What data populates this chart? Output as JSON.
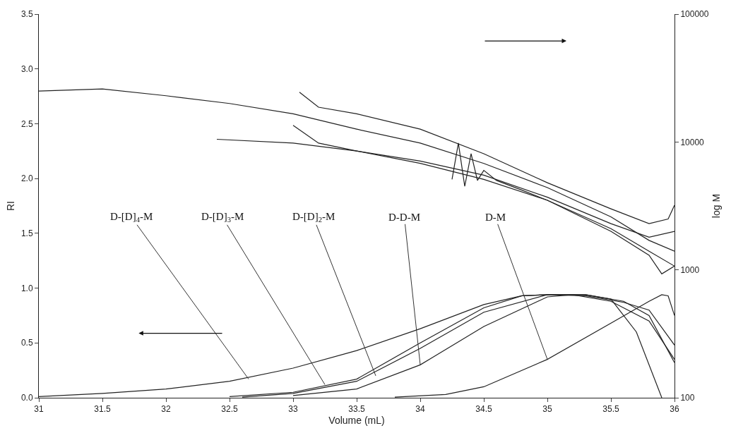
{
  "chart_data": {
    "type": "line",
    "xlabel": "Volume (mL)",
    "ylabel": "RI",
    "y2label": "log M",
    "xlim": [
      31,
      36
    ],
    "xticks": [
      31,
      31.5,
      32,
      32.5,
      33,
      33.5,
      34,
      34.5,
      35,
      35.5,
      36
    ],
    "ylim": [
      0,
      3.5
    ],
    "yticks": [
      {
        "value": 0,
        "label": "0.0"
      },
      {
        "value": 0.5,
        "label": "0.5"
      },
      {
        "value": 1,
        "label": "1.0"
      },
      {
        "value": 1.5,
        "label": "1.5"
      },
      {
        "value": 2,
        "label": "2.0"
      },
      {
        "value": 2.5,
        "label": "2.5"
      },
      {
        "value": 3,
        "label": "3.0"
      },
      {
        "value": 3.5,
        "label": "3.5"
      }
    ],
    "y2lim": [
      100,
      100000
    ],
    "y2ticks": [
      100,
      1000,
      10000,
      100000
    ],
    "log": "y2",
    "marker": "none",
    "line_style": "solid",
    "series": [
      {
        "color": "#222222",
        "x": [
          31,
          31.5,
          32,
          32.5,
          33,
          33.5,
          34,
          34.5,
          34.8,
          35,
          35.3,
          35.5,
          35.7,
          35.9
        ],
        "values": [
          0.01,
          0.04,
          0.08,
          0.15,
          0.27,
          0.43,
          0.63,
          0.85,
          0.93,
          0.94,
          0.94,
          0.9,
          0.6,
          0.0
        ]
      },
      {
        "color": "#222222",
        "x": [
          32.5,
          33,
          33.5,
          34,
          34.5,
          34.8,
          35,
          35.3,
          35.6,
          35.8,
          36
        ],
        "values": [
          0.01,
          0.05,
          0.17,
          0.5,
          0.82,
          0.93,
          0.94,
          0.93,
          0.87,
          0.8,
          0.48
        ]
      },
      {
        "color": "#222222",
        "x": [
          32.6,
          33,
          33.5,
          34,
          34.5,
          35,
          35.3,
          35.6,
          35.8,
          36
        ],
        "values": [
          0.005,
          0.04,
          0.15,
          0.45,
          0.78,
          0.94,
          0.94,
          0.88,
          0.75,
          0.32
        ]
      },
      {
        "color": "#222222",
        "x": [
          33,
          33.5,
          34,
          34.5,
          35,
          35.2,
          35.5,
          35.8,
          36
        ],
        "values": [
          0.02,
          0.08,
          0.3,
          0.65,
          0.92,
          0.94,
          0.88,
          0.7,
          0.35
        ]
      },
      {
        "color": "#222222",
        "x": [
          33.8,
          34.2,
          34.5,
          35,
          35.5,
          35.8,
          35.9,
          35.95,
          36
        ],
        "values": [
          0.005,
          0.03,
          0.1,
          0.35,
          0.68,
          0.88,
          0.94,
          0.93,
          0.75
        ]
      },
      {
        "color": "#222222",
        "axis": "y2",
        "x": [
          31,
          31.5,
          32,
          32.5,
          33,
          33.5,
          34,
          34.5,
          35,
          35.5,
          35.8,
          36
        ],
        "values": [
          25000,
          26000,
          23000,
          20000,
          16600,
          12600,
          9800,
          6800,
          4400,
          2600,
          1700,
          1400
        ]
      },
      {
        "color": "#222222",
        "axis": "y2",
        "x": [
          32.4,
          33,
          33.5,
          34,
          34.5,
          35,
          35.5,
          35.8,
          36
        ],
        "values": [
          10500,
          9800,
          8500,
          7100,
          5500,
          3700,
          2300,
          1800,
          2000
        ]
      },
      {
        "color": "#222222",
        "axis": "y2",
        "x": [
          33,
          33.2,
          33.5,
          34,
          34.5,
          35,
          35.5,
          35.8,
          36
        ],
        "values": [
          13500,
          9800,
          8500,
          6800,
          5100,
          3500,
          2100,
          1400,
          1070
        ]
      },
      {
        "color": "#222222",
        "axis": "y2",
        "x": [
          33.05,
          33.2,
          33.5,
          34,
          34.5,
          35,
          35.5,
          35.8,
          35.95,
          36
        ],
        "values": [
          24500,
          18700,
          16600,
          12600,
          8100,
          4800,
          3000,
          2300,
          2500,
          3200
        ]
      },
      {
        "color": "#222222",
        "axis": "y2",
        "x": [
          34.25,
          34.3,
          34.35,
          34.4,
          34.45,
          34.5,
          34.6,
          34.8,
          35,
          35.5,
          35.8,
          35.9,
          36
        ],
        "values": [
          5100,
          9800,
          4500,
          8100,
          5000,
          6000,
          5000,
          4200,
          3500,
          2000,
          1300,
          930,
          1070
        ]
      }
    ],
    "annotations": [
      {
        "text": "D-[D]$_{4}$-M",
        "x": 32.65,
        "y": 0.17
      },
      {
        "text": "D-[D]$_{3}$-M",
        "x": 33.25,
        "y": 0.12
      },
      {
        "text": "D-[D]$_{2}$-M",
        "x": 33.65,
        "y": 0.2
      },
      {
        "text": "D-D-M",
        "x": 34,
        "y": 0.3
      },
      {
        "text": "D-M",
        "x": 35,
        "y": 0.35
      }
    ]
  }
}
